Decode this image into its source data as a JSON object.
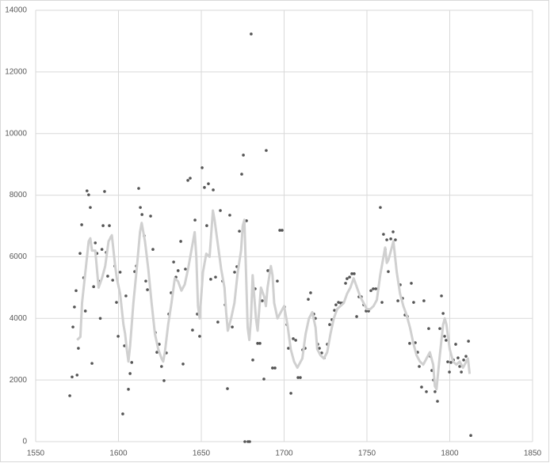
{
  "chart_data": {
    "type": "scatter",
    "xlim": [
      1550,
      1850
    ],
    "xticks": [
      1550,
      1600,
      1650,
      1700,
      1750,
      1800,
      1850
    ],
    "ylim": [
      0,
      14000
    ],
    "yticks": [
      0,
      2000,
      4000,
      6000,
      8000,
      10000,
      12000,
      14000
    ],
    "grid": true,
    "series": [
      {
        "type": "scatter",
        "color": "#555555",
        "x": [
          1570.6,
          1572,
          1572.5,
          1573.4,
          1574.4,
          1575,
          1575.8,
          1576.8,
          1577.8,
          1579,
          1580,
          1581,
          1582,
          1583,
          1584,
          1585,
          1586,
          1587,
          1588,
          1589,
          1590,
          1590.7,
          1591.6,
          1592.6,
          1593.5,
          1594.5,
          1595.5,
          1596.5,
          1597.8,
          1598.8,
          1599.8,
          1601,
          1602.6,
          1603.6,
          1604.5,
          1606,
          1607,
          1608,
          1609.8,
          1610.8,
          1612.2,
          1613.2,
          1614.2,
          1615.5,
          1616.5,
          1617.5,
          1619.4,
          1620.8,
          1622.2,
          1623.2,
          1624.6,
          1626,
          1627.5,
          1628.9,
          1630.4,
          1631.8,
          1633.3,
          1634.7,
          1636,
          1637.6,
          1639,
          1640.4,
          1641.9,
          1643.3,
          1644.7,
          1646.2,
          1647.6,
          1649,
          1650.5,
          1651.9,
          1653.3,
          1654.3,
          1655.7,
          1657.2,
          1658.6,
          1660,
          1661.5,
          1662.9,
          1664.4,
          1665.8,
          1667.2,
          1668.7,
          1670.1,
          1671.5,
          1673,
          1674.4,
          1675.4,
          1676.3,
          1677.3,
          1678.2,
          1679.2,
          1680.1,
          1681.1,
          1682.5,
          1684,
          1685.4,
          1686.8,
          1687.8,
          1689.2,
          1690.2,
          1691.6,
          1693,
          1694.5,
          1695.9,
          1697.4,
          1698.8,
          1700.2,
          1701.7,
          1702.6,
          1704.1,
          1705.5,
          1707,
          1708.4,
          1709.8,
          1711.2,
          1712.7,
          1714.6,
          1716,
          1717.9,
          1718.9,
          1720.3,
          1721.3,
          1722.7,
          1724.2,
          1726.1,
          1727.5,
          1728.9,
          1730.4,
          1731.3,
          1732.8,
          1734.2,
          1735.6,
          1737.1,
          1738,
          1739.5,
          1740.9,
          1742.3,
          1743.8,
          1745.2,
          1746.6,
          1748.1,
          1749.5,
          1751,
          1752.4,
          1753.8,
          1755.3,
          1756.7,
          1758.1,
          1759.1,
          1760,
          1761,
          1762,
          1762.9,
          1764.4,
          1765.8,
          1767.2,
          1768.7,
          1770.1,
          1771.5,
          1773,
          1774.4,
          1775.8,
          1776.8,
          1778.2,
          1779.2,
          1780.6,
          1781.6,
          1783,
          1784.4,
          1785.9,
          1787.3,
          1788.3,
          1789.2,
          1790.2,
          1791.1,
          1792.6,
          1794,
          1795,
          1796,
          1796.9,
          1797.8,
          1798.8,
          1799.8,
          1800.7,
          1802.2,
          1803.6,
          1805,
          1806,
          1807,
          1808.4,
          1809.8,
          1811.3,
          1812.7
        ],
        "values": [
          1490,
          2100,
          3720,
          4370,
          4900,
          2160,
          3030,
          6110,
          7040,
          5320,
          4240,
          8140,
          8010,
          7600,
          2540,
          5030,
          6450,
          6110,
          5210,
          4000,
          6240,
          7010,
          8120,
          6140,
          5370,
          7010,
          6630,
          5240,
          5700,
          4520,
          3420,
          5500,
          900,
          3110,
          4730,
          1700,
          2210,
          2570,
          5520,
          5700,
          8220,
          7600,
          7370,
          6680,
          5210,
          4930,
          7320,
          6240,
          3540,
          2900,
          3160,
          2440,
          1980,
          2880,
          4140,
          4830,
          5830,
          5340,
          5550,
          6500,
          2520,
          5600,
          8480,
          8550,
          3620,
          7190,
          4140,
          3420,
          8890,
          8250,
          7010,
          8370,
          5270,
          8170,
          5340,
          3880,
          7500,
          5210,
          4440,
          1720,
          7350,
          3720,
          5500,
          5680,
          6830,
          8680,
          9300,
          0,
          7170,
          0,
          0,
          13230,
          2650,
          4960,
          3190,
          3190,
          4570,
          2030,
          9450,
          5550,
          5570,
          2390,
          2390,
          5210,
          6860,
          6860,
          4370,
          3800,
          3030,
          1570,
          3340,
          3290,
          2080,
          2080,
          2980,
          3030,
          4620,
          4830,
          4140,
          4000,
          3160,
          3030,
          2880,
          2720,
          3160,
          3800,
          3960,
          4260,
          4440,
          4520,
          4500,
          4500,
          5140,
          5290,
          5340,
          5450,
          5450,
          4060,
          4700,
          4700,
          4440,
          4240,
          4240,
          4900,
          4960,
          4960,
          4960,
          7600,
          4520,
          6730,
          6240,
          6550,
          5520,
          6580,
          6810,
          6550,
          4570,
          5090,
          4650,
          4110,
          4060,
          3190,
          5140,
          4520,
          3210,
          2900,
          2440,
          1770,
          4570,
          1620,
          3670,
          2770,
          2310,
          2000,
          1620,
          1310,
          3670,
          4730,
          4160,
          3420,
          3290,
          2590,
          2260,
          2570,
          2650,
          3160,
          2720,
          2440,
          2260,
          2650,
          2770,
          3260,
          200
        ]
      },
      {
        "type": "line",
        "color": "#d0d0d0",
        "x": [
          1575,
          1577,
          1578,
          1580,
          1582,
          1583,
          1584,
          1586,
          1587,
          1588,
          1590,
          1592,
          1594,
          1596,
          1598,
          1599,
          1601,
          1603,
          1604,
          1605,
          1606,
          1607,
          1609,
          1611,
          1613,
          1614,
          1616,
          1618,
          1620,
          1622,
          1624,
          1626,
          1627,
          1628,
          1630,
          1632,
          1634,
          1636,
          1638,
          1640,
          1642,
          1644,
          1646,
          1647,
          1648,
          1649,
          1651,
          1653,
          1655,
          1657,
          1658,
          1660,
          1662,
          1664,
          1665,
          1666,
          1668,
          1670,
          1672,
          1674,
          1675,
          1676,
          1677,
          1678,
          1679,
          1680,
          1681,
          1682,
          1683,
          1684,
          1685,
          1686,
          1688,
          1689,
          1690,
          1692,
          1693,
          1694,
          1696,
          1698,
          1700,
          1702,
          1704,
          1706,
          1708,
          1710,
          1711,
          1713,
          1715,
          1717,
          1719,
          1720,
          1722,
          1724,
          1726,
          1728,
          1730,
          1732,
          1734,
          1736,
          1738,
          1740,
          1742,
          1744,
          1746,
          1748,
          1750,
          1752,
          1754,
          1756,
          1758,
          1760,
          1761,
          1762,
          1763,
          1765,
          1766,
          1767,
          1768,
          1770,
          1772,
          1774,
          1776,
          1778,
          1780,
          1782,
          1784,
          1786,
          1788,
          1790,
          1791,
          1792,
          1794,
          1796,
          1797,
          1798,
          1800,
          1802,
          1804,
          1806,
          1808,
          1809,
          1811,
          1812
        ],
        "values": [
          3300,
          3400,
          4500,
          5500,
          6500,
          6600,
          6200,
          6200,
          5600,
          5000,
          5300,
          5700,
          6500,
          6700,
          5700,
          5300,
          4800,
          3800,
          3500,
          3000,
          2600,
          3100,
          4500,
          5600,
          6800,
          7100,
          6500,
          5600,
          4500,
          3500,
          3000,
          2700,
          2600,
          2900,
          3800,
          4500,
          5300,
          5200,
          4900,
          5100,
          5600,
          6200,
          6800,
          6000,
          4400,
          4000,
          5500,
          6100,
          6000,
          7500,
          7200,
          6400,
          5600,
          5000,
          4200,
          3600,
          4000,
          4500,
          5500,
          6200,
          7000,
          7200,
          5500,
          3700,
          3300,
          4000,
          5400,
          4700,
          4000,
          3600,
          4300,
          5000,
          4700,
          4400,
          5000,
          5700,
          5400,
          4500,
          4000,
          4200,
          4400,
          3800,
          3000,
          2600,
          2400,
          2600,
          2700,
          3500,
          4000,
          4200,
          3700,
          3000,
          2800,
          2700,
          2900,
          3500,
          4000,
          4300,
          4400,
          4500,
          4800,
          5000,
          5300,
          5000,
          4700,
          4500,
          4300,
          4300,
          4400,
          4600,
          5400,
          6000,
          6300,
          5800,
          5900,
          6300,
          6500,
          6000,
          5500,
          4800,
          4400,
          4100,
          3700,
          3200,
          2800,
          2600,
          2500,
          2700,
          2900,
          2500,
          1800,
          1700,
          2800,
          3800,
          4000,
          3800,
          3000,
          2600,
          2500,
          2600,
          2400,
          2500,
          2700,
          2200
        ]
      }
    ]
  }
}
